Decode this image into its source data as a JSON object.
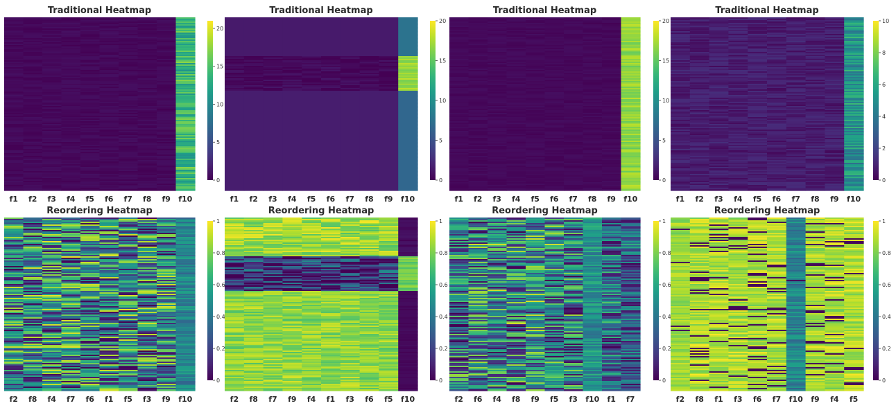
{
  "chart_data": [
    {
      "id": "p1",
      "type": "heatmap",
      "title": "Traditional Heatmap",
      "columns": [
        "f1",
        "f2",
        "f3",
        "f4",
        "f5",
        "f6",
        "f7",
        "f8",
        "f9",
        "f10"
      ],
      "colorbar": {
        "min": 0,
        "max": 21,
        "ticks": [
          0,
          5,
          10,
          15,
          20
        ]
      },
      "pattern": "noise",
      "base": [
        0.02,
        0.02,
        0.02,
        0.02,
        0.02,
        0.02,
        0.02,
        0.02,
        0.02,
        0.66
      ],
      "spread": [
        0.04,
        0.04,
        0.04,
        0.04,
        0.04,
        0.04,
        0.04,
        0.04,
        0.04,
        0.3
      ]
    },
    {
      "id": "p2",
      "type": "heatmap",
      "title": "Traditional Heatmap",
      "columns": [
        "f1",
        "f2",
        "f3",
        "f4",
        "f5",
        "f6",
        "f7",
        "f8",
        "f9",
        "f10"
      ],
      "colorbar": {
        "min": 0,
        "max": 20,
        "ticks": [
          0,
          5,
          10,
          15,
          20
        ]
      },
      "pattern": "clusters",
      "clusters": [
        {
          "frac": 0.22,
          "base": [
            0.07,
            0.07,
            0.07,
            0.07,
            0.07,
            0.07,
            0.07,
            0.07,
            0.07,
            0.38
          ],
          "spread": [
            0,
            0,
            0,
            0,
            0,
            0,
            0,
            0,
            0,
            0
          ]
        },
        {
          "frac": 0.2,
          "base": [
            0.02,
            0.02,
            0.02,
            0.02,
            0.02,
            0.02,
            0.02,
            0.02,
            0.02,
            0.85
          ],
          "spread": [
            0.08,
            0.08,
            0.08,
            0.08,
            0.08,
            0.08,
            0.08,
            0.08,
            0.08,
            0.12
          ]
        },
        {
          "frac": 0.58,
          "base": [
            0.08,
            0.08,
            0.08,
            0.08,
            0.08,
            0.08,
            0.08,
            0.08,
            0.08,
            0.33
          ],
          "spread": [
            0,
            0,
            0,
            0,
            0,
            0,
            0,
            0,
            0,
            0
          ]
        }
      ]
    },
    {
      "id": "p3",
      "type": "heatmap",
      "title": "Traditional Heatmap",
      "columns": [
        "f1",
        "f2",
        "f3",
        "f4",
        "f5",
        "f6",
        "f7",
        "f8",
        "f9",
        "f10"
      ],
      "colorbar": {
        "min": 0,
        "max": 20,
        "ticks": [
          0,
          5,
          10,
          15,
          20
        ]
      },
      "pattern": "noise",
      "base": [
        0.02,
        0.02,
        0.02,
        0.02,
        0.02,
        0.02,
        0.02,
        0.02,
        0.02,
        0.83
      ],
      "spread": [
        0.03,
        0.03,
        0.03,
        0.03,
        0.03,
        0.03,
        0.03,
        0.03,
        0.03,
        0.14
      ]
    },
    {
      "id": "p4",
      "type": "heatmap",
      "title": "Traditional Heatmap",
      "columns": [
        "f1",
        "f2",
        "f3",
        "f4",
        "f5",
        "f6",
        "f7",
        "f8",
        "f9",
        "f10"
      ],
      "colorbar": {
        "min": 0,
        "max": 10,
        "ticks": [
          0,
          2,
          4,
          6,
          8,
          10
        ]
      },
      "pattern": "noise",
      "base": [
        0.08,
        0.08,
        0.08,
        0.08,
        0.08,
        0.08,
        0.08,
        0.08,
        0.08,
        0.52
      ],
      "spread": [
        0.1,
        0.1,
        0.1,
        0.1,
        0.1,
        0.1,
        0.1,
        0.1,
        0.1,
        0.3
      ]
    },
    {
      "id": "p5",
      "type": "heatmap",
      "title": "Reordering Heatmap",
      "columns": [
        "f2",
        "f8",
        "f4",
        "f7",
        "f6",
        "f1",
        "f5",
        "f3",
        "f9",
        "f10"
      ],
      "colorbar": {
        "min": 0,
        "max": 1,
        "ticks": [
          0,
          0.2,
          0.4,
          0.6,
          0.8,
          1
        ]
      },
      "pattern": "noise",
      "base": [
        0.45,
        0.45,
        0.45,
        0.45,
        0.45,
        0.45,
        0.45,
        0.45,
        0.45,
        0.45
      ],
      "spread": [
        0.95,
        0.95,
        0.95,
        0.95,
        0.95,
        0.95,
        0.95,
        0.95,
        0.95,
        0.25
      ]
    },
    {
      "id": "p6",
      "type": "heatmap",
      "title": "Reordering Heatmap",
      "columns": [
        "f2",
        "f8",
        "f7",
        "f9",
        "f4",
        "f1",
        "f3",
        "f6",
        "f5",
        "f10"
      ],
      "colorbar": {
        "min": 0,
        "max": 1,
        "ticks": [
          0,
          0.2,
          0.4,
          0.6,
          0.8,
          1
        ]
      },
      "pattern": "clusters",
      "clusters": [
        {
          "frac": 0.22,
          "base": [
            0.85,
            0.85,
            0.85,
            0.85,
            0.85,
            0.85,
            0.85,
            0.85,
            0.85,
            0.03
          ],
          "spread": [
            0.25,
            0.25,
            0.25,
            0.25,
            0.25,
            0.25,
            0.25,
            0.25,
            0.25,
            0.05
          ]
        },
        {
          "frac": 0.2,
          "base": [
            0.15,
            0.15,
            0.15,
            0.15,
            0.15,
            0.15,
            0.15,
            0.15,
            0.15,
            0.78
          ],
          "spread": [
            0.6,
            0.6,
            0.6,
            0.6,
            0.6,
            0.6,
            0.6,
            0.6,
            0.6,
            0.15
          ]
        },
        {
          "frac": 0.58,
          "base": [
            0.83,
            0.83,
            0.83,
            0.83,
            0.83,
            0.83,
            0.83,
            0.83,
            0.83,
            0.02
          ],
          "spread": [
            0.2,
            0.2,
            0.2,
            0.2,
            0.2,
            0.2,
            0.2,
            0.2,
            0.2,
            0.03
          ]
        }
      ]
    },
    {
      "id": "p7",
      "type": "heatmap",
      "title": "Reordering Heatmap",
      "columns": [
        "f2",
        "f6",
        "f4",
        "f8",
        "f9",
        "f5",
        "f3",
        "f10",
        "f1",
        "f7"
      ],
      "colorbar": {
        "min": 0,
        "max": 1,
        "ticks": [
          0,
          0.2,
          0.4,
          0.6,
          0.8,
          1
        ]
      },
      "pattern": "noise",
      "base": [
        0.4,
        0.45,
        0.45,
        0.45,
        0.5,
        0.45,
        0.4,
        0.5,
        0.35,
        0.3
      ],
      "spread": [
        0.85,
        0.85,
        0.85,
        0.85,
        0.85,
        0.85,
        0.85,
        0.3,
        0.7,
        0.6
      ]
    },
    {
      "id": "p8",
      "type": "heatmap",
      "title": "Reordering Heatmap",
      "columns": [
        "f2",
        "f8",
        "f1",
        "f3",
        "f6",
        "f7",
        "f10",
        "f9",
        "f4",
        "f5"
      ],
      "colorbar": {
        "min": 0,
        "max": 1,
        "ticks": [
          0,
          0.2,
          0.4,
          0.6,
          0.8,
          1
        ]
      },
      "pattern": "noise",
      "base": [
        0.85,
        0.88,
        0.88,
        0.88,
        0.88,
        0.88,
        0.45,
        0.88,
        0.88,
        0.88
      ],
      "spread": [
        0.15,
        0.2,
        0.2,
        0.2,
        0.2,
        0.2,
        0.25,
        0.2,
        0.2,
        0.2
      ],
      "dark_frac": [
        0.04,
        0.12,
        0.12,
        0.14,
        0.14,
        0.12,
        0.02,
        0.14,
        0.12,
        0.1
      ]
    }
  ]
}
